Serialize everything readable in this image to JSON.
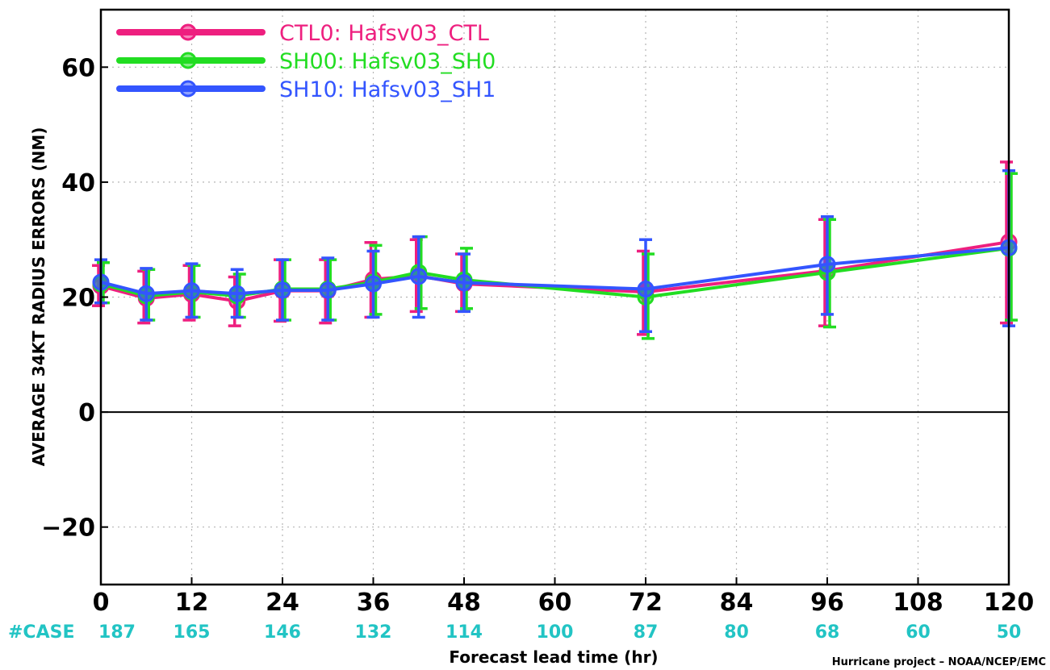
{
  "chart_data": {
    "type": "line",
    "ylabel": "AVERAGE  34KT  RADIUS  ERRORS  (NM)",
    "xlabel": "Forecast lead time (hr)",
    "credit": "Hurricane project – NOAA/NCEP/EMC",
    "xlim": [
      0,
      120
    ],
    "ylim": [
      -30,
      70
    ],
    "x_ticks": [
      0,
      12,
      24,
      36,
      48,
      60,
      72,
      84,
      96,
      108,
      120
    ],
    "y_ticks": [
      -20,
      0,
      20,
      40,
      60
    ],
    "grid": "dotted",
    "legend_position": "top-left",
    "case_label": "#CASE",
    "case_counts": [
      {
        "x": 0,
        "n": "187"
      },
      {
        "x": 12,
        "n": "165"
      },
      {
        "x": 24,
        "n": "146"
      },
      {
        "x": 36,
        "n": "132"
      },
      {
        "x": 48,
        "n": "114"
      },
      {
        "x": 60,
        "n": "100"
      },
      {
        "x": 72,
        "n": "87"
      },
      {
        "x": 84,
        "n": "80"
      },
      {
        "x": 96,
        "n": "68"
      },
      {
        "x": 108,
        "n": "60"
      },
      {
        "x": 120,
        "n": "50"
      }
    ],
    "colors": {
      "case": "#22c4c4",
      "zero_line": "#000000",
      "grid": "#b5b5b5"
    },
    "series": [
      {
        "name": "CTL0: Hafsv03_CTL",
        "color": "#ee1f7f",
        "x": [
          0,
          6,
          12,
          18,
          24,
          30,
          36,
          42,
          48,
          72,
          96,
          120
        ],
        "y": [
          21.9,
          19.8,
          20.5,
          19.3,
          21.1,
          21.1,
          23.1,
          23.7,
          22.3,
          20.9,
          24.6,
          29.6
        ],
        "low": [
          18.5,
          15.5,
          16.0,
          15.0,
          15.8,
          15.5,
          16.5,
          17.5,
          17.5,
          13.5,
          15.0,
          15.5
        ],
        "high": [
          25.5,
          24.5,
          25.5,
          23.5,
          26.5,
          26.5,
          29.5,
          30.0,
          27.5,
          28.0,
          33.5,
          43.5
        ]
      },
      {
        "name": "SH00: Hafsv03_SH0",
        "color": "#22dd22",
        "x": [
          0,
          6,
          12,
          18,
          24,
          30,
          36,
          42,
          48,
          72,
          96,
          120
        ],
        "y": [
          22.3,
          20.2,
          20.9,
          20.2,
          21.4,
          21.4,
          22.6,
          24.3,
          23.0,
          20.0,
          24.3,
          28.5
        ],
        "low": [
          19.0,
          16.0,
          16.5,
          16.5,
          16.0,
          16.0,
          17.0,
          18.0,
          18.0,
          12.8,
          14.8,
          16.0
        ],
        "high": [
          26.0,
          24.8,
          25.5,
          24.0,
          26.5,
          26.5,
          29.0,
          30.5,
          28.5,
          27.5,
          33.5,
          41.5
        ]
      },
      {
        "name": "SH10: Hafsv03_SH1",
        "color": "#3355ff",
        "x": [
          0,
          6,
          12,
          18,
          24,
          30,
          36,
          42,
          48,
          72,
          96,
          120
        ],
        "y": [
          22.6,
          20.6,
          21.1,
          20.6,
          21.2,
          21.2,
          22.3,
          23.6,
          22.5,
          21.4,
          25.7,
          28.6
        ],
        "low": [
          19.0,
          16.0,
          16.5,
          16.5,
          16.0,
          16.0,
          16.5,
          16.5,
          17.5,
          14.0,
          17.0,
          15.0
        ],
        "high": [
          26.5,
          25.0,
          25.8,
          24.8,
          26.5,
          26.8,
          28.0,
          30.5,
          27.5,
          30.0,
          34.0,
          42.0
        ]
      }
    ]
  }
}
